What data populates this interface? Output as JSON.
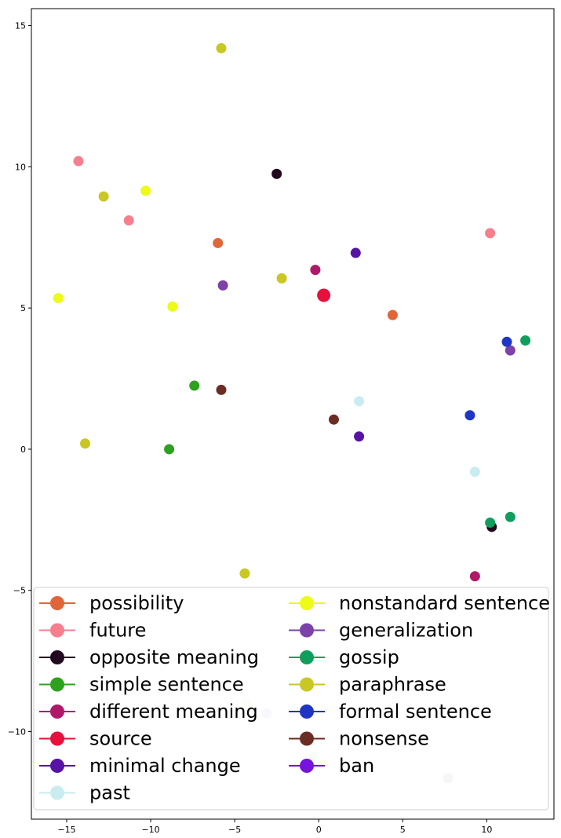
{
  "chart_data": {
    "type": "scatter",
    "title": "",
    "xlabel": "",
    "ylabel": "",
    "xlim": [
      -17.1,
      14.0
    ],
    "ylim": [
      -13.1,
      15.6
    ],
    "xticks": [
      -15,
      -10,
      -5,
      0,
      5,
      10
    ],
    "yticks": [
      -10,
      -5,
      0,
      5,
      10,
      15
    ],
    "xtick_labels": [
      "−15",
      "−10",
      "−5",
      "0",
      "5",
      "10"
    ],
    "ytick_labels": [
      "−10",
      "−5",
      "0",
      "5",
      "10",
      "15"
    ],
    "grid": false,
    "legend_placement": "bottom (two columns)",
    "series": [
      {
        "name": "possibility",
        "color": "#e0663a",
        "points": [
          [
            -6.0,
            7.3
          ],
          [
            4.4,
            4.75
          ]
        ]
      },
      {
        "name": "future",
        "color": "#f67f8e",
        "points": [
          [
            -14.3,
            10.2
          ],
          [
            -11.3,
            8.1
          ],
          [
            10.2,
            7.65
          ]
        ]
      },
      {
        "name": "opposite meaning",
        "color": "#22091f",
        "points": [
          [
            -2.5,
            9.75
          ],
          [
            10.3,
            -2.75
          ]
        ]
      },
      {
        "name": "simple sentence",
        "color": "#2ea11f",
        "points": [
          [
            -7.4,
            2.25
          ],
          [
            -8.9,
            0.0
          ]
        ]
      },
      {
        "name": "different meaning",
        "color": "#b0196a",
        "points": [
          [
            -0.2,
            6.35
          ],
          [
            9.3,
            -4.5
          ]
        ]
      },
      {
        "name": "source",
        "color": "#e6113d",
        "points": [
          [
            0.3,
            5.45
          ]
        ]
      },
      {
        "name": "minimal change",
        "color": "#5714a4",
        "points": [
          [
            2.2,
            6.95
          ],
          [
            2.4,
            0.45
          ]
        ]
      },
      {
        "name": "past",
        "color": "#c9ecf0",
        "points": [
          [
            2.4,
            1.7
          ],
          [
            9.3,
            -0.8
          ]
        ]
      },
      {
        "name": "nonstandard sentence",
        "color": "#edfb17",
        "points": [
          [
            -10.3,
            9.15
          ],
          [
            -15.5,
            5.35
          ],
          [
            -8.7,
            5.05
          ]
        ]
      },
      {
        "name": "generalization",
        "color": "#7c42a8",
        "points": [
          [
            -5.7,
            5.8
          ],
          [
            11.4,
            3.5
          ]
        ]
      },
      {
        "name": "gossip",
        "color": "#0f9e5c",
        "points": [
          [
            12.3,
            3.85
          ],
          [
            10.2,
            -2.6
          ],
          [
            11.4,
            -2.4
          ]
        ]
      },
      {
        "name": "paraphrase",
        "color": "#c8c724",
        "points": [
          [
            -5.8,
            14.2
          ],
          [
            -12.8,
            8.95
          ],
          [
            -2.2,
            6.05
          ],
          [
            -13.9,
            0.2
          ],
          [
            -4.4,
            -4.4
          ]
        ]
      },
      {
        "name": "formal sentence",
        "color": "#1f35c4",
        "points": [
          [
            11.2,
            3.8
          ],
          [
            9.0,
            1.2
          ]
        ]
      },
      {
        "name": "nonsense",
        "color": "#6b2d23",
        "points": [
          [
            -5.8,
            2.1
          ],
          [
            0.9,
            1.05
          ]
        ]
      },
      {
        "name": "ban",
        "color": "#7614d8",
        "points": []
      }
    ],
    "extra_points": [
      {
        "x": -4.3,
        "y": -9.0,
        "color": "#f3efd3"
      },
      {
        "x": -3.1,
        "y": -9.35,
        "color": "#d7dbf3"
      },
      {
        "x": -0.3,
        "y": -10.9,
        "color": "#d8f0d0"
      },
      {
        "x": 7.7,
        "y": -11.65,
        "color": "#d7cbd1"
      }
    ]
  }
}
